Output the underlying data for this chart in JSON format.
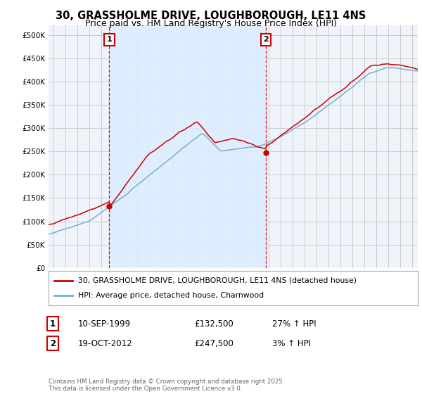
{
  "title": "30, GRASSHOLME DRIVE, LOUGHBOROUGH, LE11 4NS",
  "subtitle": "Price paid vs. HM Land Registry's House Price Index (HPI)",
  "ylabel_ticks": [
    "£0",
    "£50K",
    "£100K",
    "£150K",
    "£200K",
    "£250K",
    "£300K",
    "£350K",
    "£400K",
    "£450K",
    "£500K"
  ],
  "ytick_values": [
    0,
    50000,
    100000,
    150000,
    200000,
    250000,
    300000,
    350000,
    400000,
    450000,
    500000
  ],
  "ylim": [
    0,
    520000
  ],
  "xlim_start": 1994.6,
  "xlim_end": 2025.5,
  "sale1_x": 1999.69,
  "sale1_y": 132500,
  "sale2_x": 2012.79,
  "sale2_y": 247500,
  "red_line_color": "#cc0000",
  "blue_line_color": "#7aadcf",
  "shade_color": "#ddeeff",
  "vline_color": "#cc0000",
  "grid_color": "#cccccc",
  "background_color": "#eef4fa",
  "legend_label_red": "30, GRASSHOLME DRIVE, LOUGHBOROUGH, LE11 4NS (detached house)",
  "legend_label_blue": "HPI: Average price, detached house, Charnwood",
  "table_row1": [
    "1",
    "10-SEP-1999",
    "£132,500",
    "27% ↑ HPI"
  ],
  "table_row2": [
    "2",
    "19-OCT-2012",
    "£247,500",
    "3% ↑ HPI"
  ],
  "footnote": "Contains HM Land Registry data © Crown copyright and database right 2025.\nThis data is licensed under the Open Government Licence v3.0.",
  "title_fontsize": 10.5,
  "subtitle_fontsize": 9,
  "tick_fontsize": 7.5,
  "annotation_fontsize": 8
}
